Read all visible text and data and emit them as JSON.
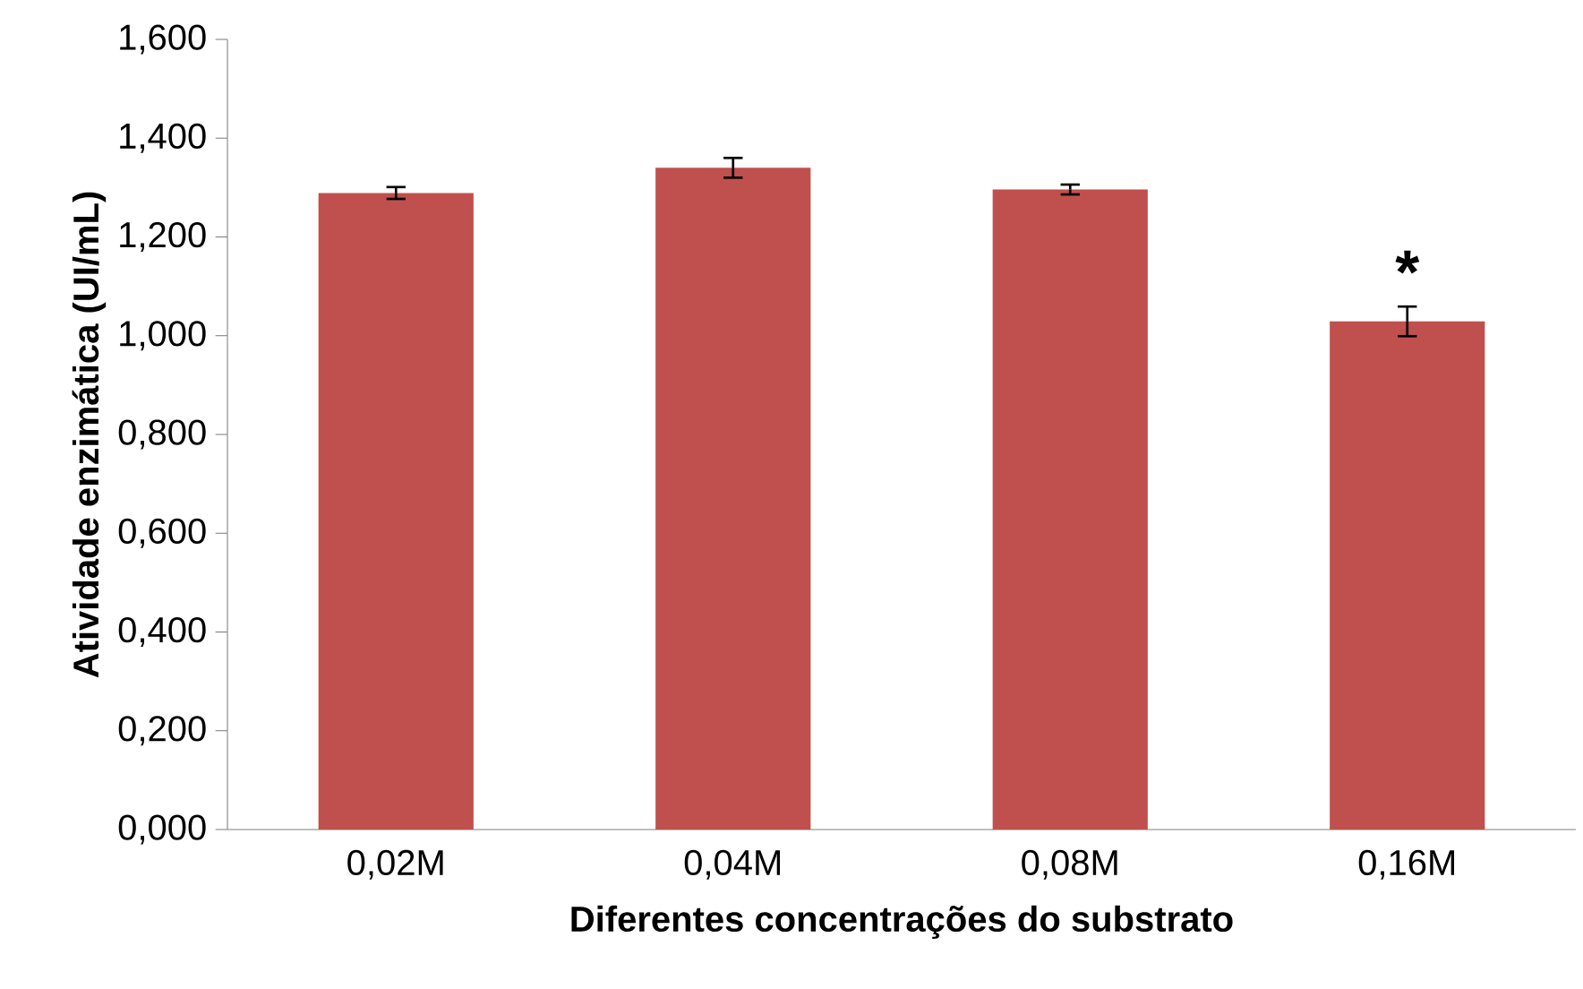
{
  "chart_data": {
    "type": "bar",
    "xlabel": "Diferentes concentrações do substrato",
    "ylabel": "Atividade enzimática (UI/mL)",
    "categories": [
      "0,02M",
      "0,04M",
      "0,08M",
      "0,16M"
    ],
    "values": [
      1.289,
      1.34,
      1.296,
      1.029
    ],
    "errors": [
      0.012,
      0.02,
      0.01,
      0.03
    ],
    "color": "#c0504d",
    "ylim": [
      0,
      1.6
    ],
    "yticks": [
      {
        "value": 0,
        "label": "0,000"
      },
      {
        "value": 0.2,
        "label": "0,200"
      },
      {
        "value": 0.4,
        "label": "0,400"
      },
      {
        "value": 0.6,
        "label": "0,600"
      },
      {
        "value": 0.8,
        "label": "0,800"
      },
      {
        "value": 1.0,
        "label": "1,000"
      },
      {
        "value": 1.2,
        "label": "1,200"
      },
      {
        "value": 1.4,
        "label": "1,400"
      },
      {
        "value": 1.6,
        "label": "1,600"
      }
    ],
    "annotations": [
      "*"
    ],
    "grid": false
  }
}
